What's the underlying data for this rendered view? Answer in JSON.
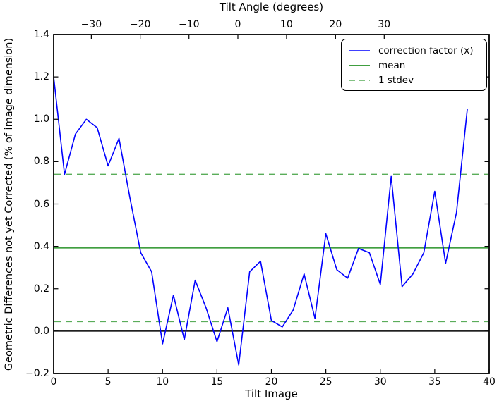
{
  "chart_data": {
    "type": "line",
    "title": "",
    "top_x_label": "Tilt Angle (degrees)",
    "x_label": "Tilt Image",
    "y_label": "Geometric Differences not yet Corrected (% of image dimension)",
    "x_range": [
      0,
      40
    ],
    "y_range": [
      -0.2,
      1.4
    ],
    "x_ticks": [
      0,
      5,
      10,
      15,
      20,
      25,
      30,
      35,
      40
    ],
    "x_tick_labels": [
      "0",
      "5",
      "10",
      "15",
      "20",
      "25",
      "30",
      "35",
      "40"
    ],
    "y_ticks": [
      1.4,
      1.2,
      1.0,
      0.8,
      0.6,
      0.4,
      0.2,
      0.0,
      -0.2
    ],
    "y_tick_labels": [
      "1.4",
      "1.2",
      "1.0",
      "0.8",
      "0.6",
      "0.4",
      "0.2",
      "0.0",
      "−0.2"
    ],
    "top_x_ticks": [
      {
        "label": "−30",
        "x": 3.46
      },
      {
        "label": "−20",
        "x": 7.95
      },
      {
        "label": "−10",
        "x": 12.43
      },
      {
        "label": "0",
        "x": 16.92
      },
      {
        "label": "10",
        "x": 21.39
      },
      {
        "label": "20",
        "x": 25.89
      },
      {
        "label": "30",
        "x": 30.36
      }
    ],
    "series": [
      {
        "name": "correction factor (x)",
        "color": "#0000ff",
        "style": "solid",
        "x": [
          0,
          1,
          2,
          3,
          4,
          5,
          6,
          7,
          8,
          9,
          10,
          11,
          12,
          13,
          14,
          15,
          16,
          17,
          18,
          19,
          20,
          21,
          22,
          23,
          24,
          25,
          26,
          27,
          28,
          29,
          30,
          31,
          32,
          33,
          34,
          35,
          36,
          37,
          38
        ],
        "values": [
          1.2,
          0.74,
          0.93,
          1.0,
          0.96,
          0.78,
          0.91,
          0.63,
          0.37,
          0.28,
          -0.06,
          0.17,
          -0.04,
          0.24,
          0.11,
          -0.05,
          0.11,
          -0.16,
          0.28,
          0.33,
          0.05,
          0.02,
          0.1,
          0.27,
          0.06,
          0.46,
          0.29,
          0.25,
          0.39,
          0.37,
          0.22,
          0.73,
          0.21,
          0.27,
          0.37,
          0.66,
          0.32,
          0.56,
          1.05
        ]
      }
    ],
    "hlines": [
      {
        "name": "zero-line",
        "y": 0.0,
        "color": "#000000",
        "style": "solid",
        "width": 1.4
      },
      {
        "name": "mean-line",
        "y": 0.3925,
        "color": "#007f00",
        "style": "solid",
        "width": 1.3
      },
      {
        "name": "stdev-upper-line",
        "y": 0.74,
        "color": "#5aad5a",
        "style": "dashed",
        "width": 1.5
      },
      {
        "name": "stdev-lower-line",
        "y": 0.045,
        "color": "#5aad5a",
        "style": "dashed",
        "width": 1.5
      }
    ],
    "legend": {
      "position": "upper right",
      "items": [
        {
          "label": "correction factor (x)",
          "color": "#0000ff",
          "style": "solid"
        },
        {
          "label": "mean",
          "color": "#007f00",
          "style": "solid"
        },
        {
          "label": "1 stdev",
          "color": "#5aad5a",
          "style": "dashed"
        }
      ]
    },
    "statistics": {
      "mean": 0.3925,
      "stdev": 0.3475
    }
  }
}
